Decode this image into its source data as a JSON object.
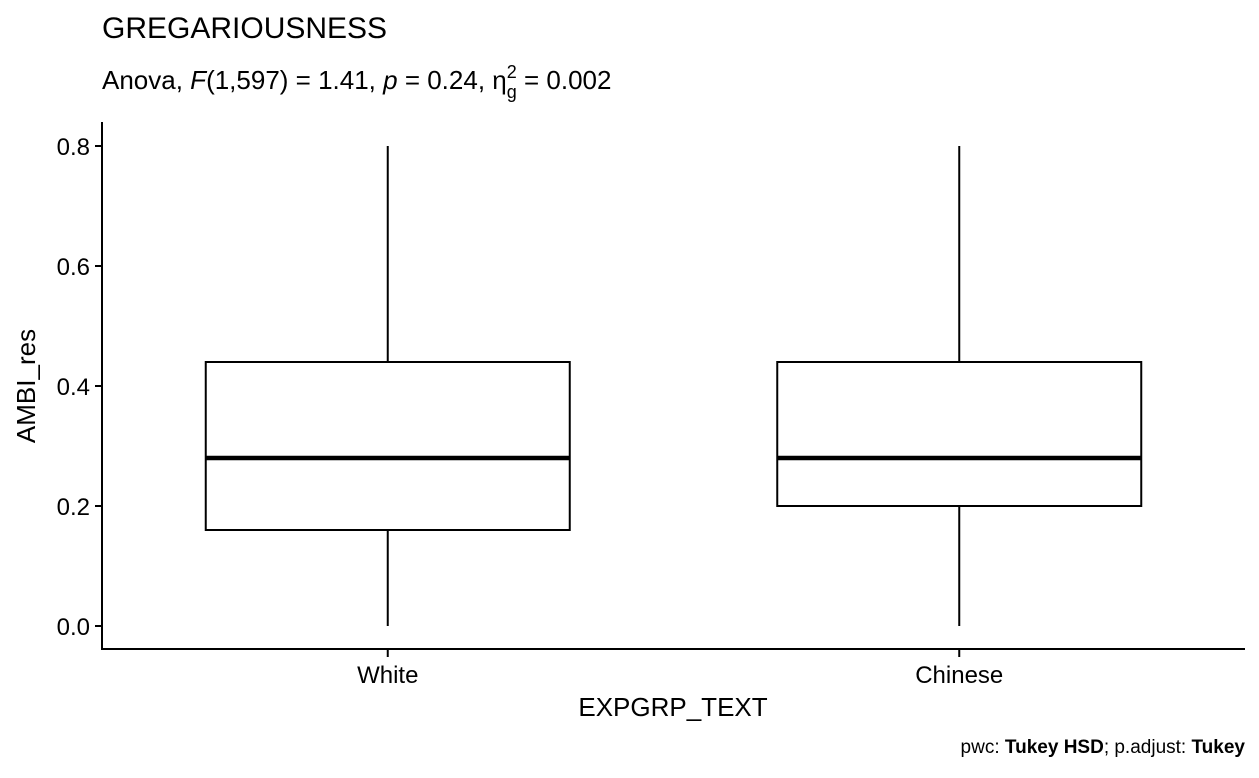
{
  "chart_data": {
    "type": "box",
    "title": "GREGARIOUSNESS",
    "subtitle": {
      "prefix": "Anova, ",
      "stat_symbol": "F",
      "df": "(1,597) = 1.41, ",
      "p_symbol": "p",
      "p_value": " = 0.24, ",
      "effect_symbol": "η",
      "effect_sup": "2",
      "effect_sub": "g",
      "effect_value": " = 0.002"
    },
    "xlabel": "EXPGRP_TEXT",
    "ylabel": "AMBI_res",
    "ylim": [
      -0.04,
      0.84
    ],
    "yticks": [
      0.0,
      0.2,
      0.4,
      0.6,
      0.8
    ],
    "ytick_labels": [
      "0.0",
      "0.2",
      "0.4",
      "0.6",
      "0.8"
    ],
    "categories": [
      "White",
      "Chinese"
    ],
    "boxes": [
      {
        "category": "White",
        "min": 0.0,
        "q1": 0.16,
        "median": 0.28,
        "q3": 0.44,
        "max": 0.8
      },
      {
        "category": "Chinese",
        "min": 0.0,
        "q1": 0.2,
        "median": 0.28,
        "q3": 0.44,
        "max": 0.8
      }
    ],
    "grid": false,
    "caption": {
      "pwc_label": "pwc: ",
      "pwc_value": "Tukey HSD",
      "sep": "; p.adjust: ",
      "adjust_value": "Tukey"
    }
  }
}
